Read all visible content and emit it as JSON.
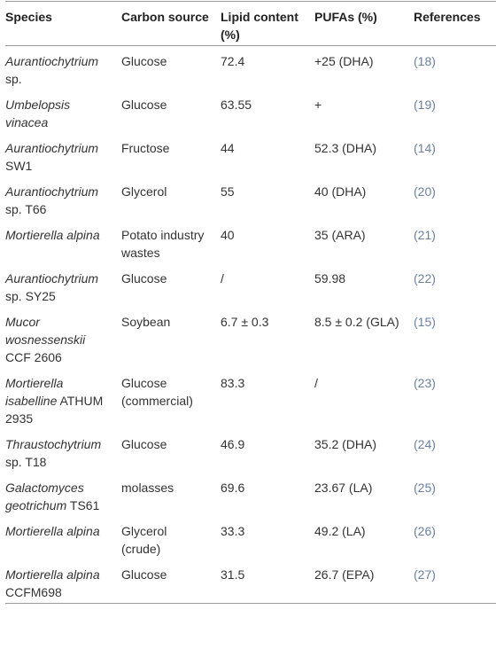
{
  "table": {
    "header": [
      "Species",
      "Carbon source",
      "Lipid content (%)",
      "PUFAs (%)",
      "References"
    ],
    "rows": [
      {
        "species": {
          "name": "Aurantiochytrium",
          "strain": "sp."
        },
        "carbon_source": "Glucose",
        "lipid_content": "72.4",
        "pufas": "+25 (DHA)",
        "reference": "(18)"
      },
      {
        "species": {
          "name": "Umbelopsis vinacea"
        },
        "carbon_source": "Glucose",
        "lipid_content": "63.55",
        "pufas": "+",
        "reference": "(19)"
      },
      {
        "species": {
          "name": "Aurantiochytrium",
          "strain": "SW1"
        },
        "carbon_source": "Fructose",
        "lipid_content": "44",
        "pufas": "52.3 (DHA)",
        "reference": "(14)"
      },
      {
        "species": {
          "name": "Aurantiochytrium",
          "strain": "sp. T66"
        },
        "carbon_source": "Glycerol",
        "lipid_content": "55",
        "pufas": "40 (DHA)",
        "reference": "(20)"
      },
      {
        "species": {
          "name": "Mortierella alpina"
        },
        "carbon_source": "Potato industry wastes",
        "lipid_content": "40",
        "pufas": "35 (ARA)",
        "reference": "(21)"
      },
      {
        "species": {
          "name": "Aurantiochytrium",
          "strain": "sp. SY25"
        },
        "carbon_source": "Glucose",
        "lipid_content": "/",
        "pufas": "59.98",
        "reference": "(22)"
      },
      {
        "species": {
          "name": "Mucor wosnessenskii",
          "strain": "CCF 2606"
        },
        "carbon_source": "Soybean",
        "lipid_content": "6.7 ± 0.3",
        "pufas": "8.5 ± 0.2 (GLA)",
        "reference": "(15)"
      },
      {
        "species": {
          "name": "Mortierella isabelline",
          "strain": "ATHUM 2935"
        },
        "carbon_source": "Glucose (commercial)",
        "lipid_content": "83.3",
        "pufas": "/",
        "reference": "(23)"
      },
      {
        "species": {
          "name": "Thraustochytrium",
          "strain": "sp. T18"
        },
        "carbon_source": "Glucose",
        "lipid_content": "46.9",
        "pufas": "35.2 (DHA)",
        "reference": "(24)"
      },
      {
        "species": {
          "name": "Galactomyces geotrichum",
          "strain": "TS61"
        },
        "carbon_source": "molasses",
        "lipid_content": "69.6",
        "pufas": "23.67 (LA)",
        "reference": "(25)"
      },
      {
        "species": {
          "name": "Mortierella alpina"
        },
        "carbon_source": "Glycerol (crude)",
        "lipid_content": "33.3",
        "pufas": "49.2 (LA)",
        "reference": "(26)"
      },
      {
        "species": {
          "name": "Mortierella alpina",
          "strain": "CCFM698"
        },
        "carbon_source": "Glucose",
        "lipid_content": "31.5",
        "pufas": "26.7 (EPA)",
        "reference": "(27)"
      }
    ]
  }
}
